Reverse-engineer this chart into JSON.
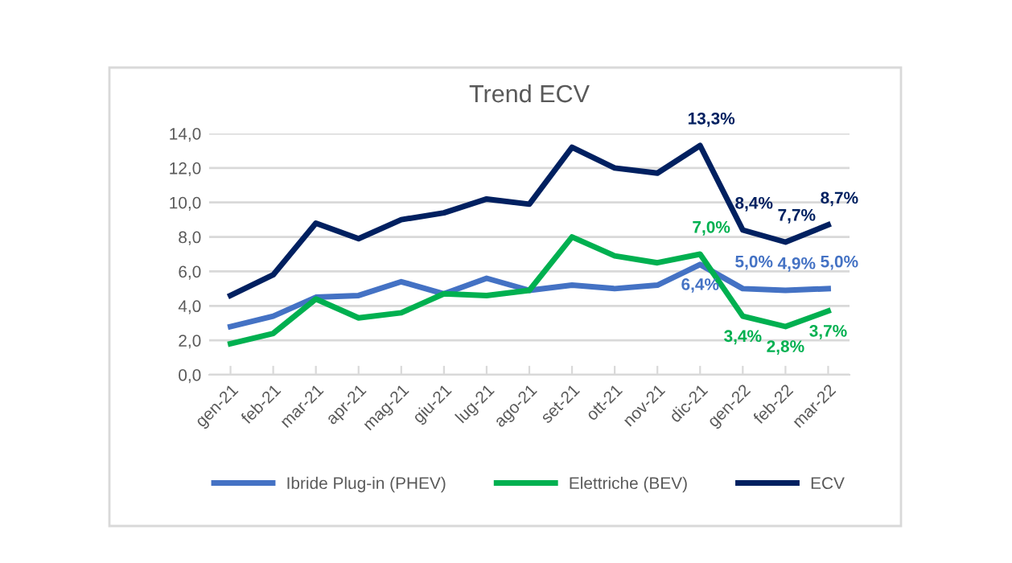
{
  "chart_data": {
    "type": "line",
    "title": "Trend ECV",
    "categories": [
      "gen-21",
      "feb-21",
      "mar-21",
      "apr-21",
      "mag-21",
      "giu-21",
      "lug-21",
      "ago-21",
      "set-21",
      "ott-21",
      "nov-21",
      "dic-21",
      "gen-22",
      "feb-22",
      "mar-22"
    ],
    "series": [
      {
        "name": "Ibride Plug-in (PHEV)",
        "color": "#4472c4",
        "values": [
          2.8,
          3.4,
          4.5,
          4.6,
          5.4,
          4.7,
          5.6,
          4.9,
          5.2,
          5.0,
          5.2,
          6.4,
          5.0,
          4.9,
          5.0
        ],
        "value_labels": [
          null,
          null,
          null,
          null,
          null,
          null,
          null,
          null,
          null,
          null,
          null,
          "6,4%",
          "5,0%",
          "4,9%",
          "5,0%"
        ]
      },
      {
        "name": "Elettriche (BEV)",
        "color": "#00b050",
        "values": [
          1.8,
          2.4,
          4.4,
          3.3,
          3.6,
          4.7,
          4.6,
          4.9,
          8.0,
          6.9,
          6.5,
          7.0,
          3.4,
          2.8,
          3.7
        ],
        "value_labels": [
          null,
          null,
          null,
          null,
          null,
          null,
          null,
          null,
          null,
          null,
          null,
          "7,0%",
          "3,4%",
          "2,8%",
          "3,7%"
        ]
      },
      {
        "name": "ECV",
        "color": "#002060",
        "values": [
          4.6,
          5.8,
          8.8,
          7.9,
          9.0,
          9.4,
          10.2,
          9.9,
          13.2,
          12.0,
          11.7,
          13.3,
          8.4,
          7.7,
          8.7
        ],
        "value_labels": [
          null,
          null,
          null,
          null,
          null,
          null,
          null,
          null,
          null,
          null,
          null,
          "13,3%",
          "8,4%",
          "7,7%",
          "8,7%"
        ]
      }
    ],
    "ylim": [
      0,
      14
    ],
    "yticks": [
      {
        "value": 0,
        "label": "0,0"
      },
      {
        "value": 2,
        "label": "2,0"
      },
      {
        "value": 4,
        "label": "4,0"
      },
      {
        "value": 6,
        "label": "6,0"
      },
      {
        "value": 8,
        "label": "8,0"
      },
      {
        "value": 10,
        "label": "10,0"
      },
      {
        "value": 12,
        "label": "12,0"
      },
      {
        "value": 14,
        "label": "14,0"
      }
    ],
    "grid": "y",
    "legend": "bottom",
    "marker": "none",
    "line_style": "solid"
  }
}
